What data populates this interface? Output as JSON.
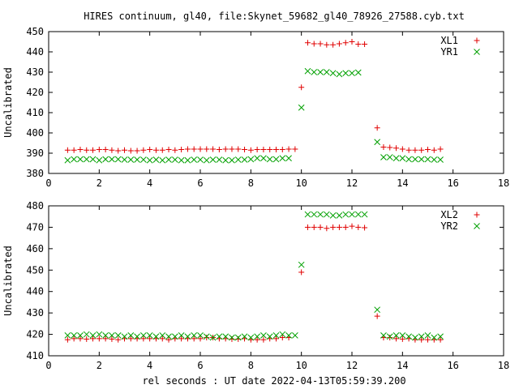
{
  "title": "HIRES continuum, gl40, file:Skynet_59682_gl40_78926_27588.cyb.txt",
  "xlabel": "rel seconds : UT date 2022-04-13T05:59:39.200",
  "colors": {
    "red": "#e00000",
    "green": "#00a000",
    "axis": "#000000"
  },
  "chart_data": [
    {
      "type": "scatter",
      "ylabel": "Uncalibrated",
      "xlim": [
        0,
        18
      ],
      "ylim": [
        380,
        450
      ],
      "xticks": [
        0,
        2,
        4,
        6,
        8,
        10,
        12,
        14,
        16,
        18
      ],
      "yticks": [
        380,
        390,
        400,
        410,
        420,
        430,
        440,
        450
      ],
      "legend_position": "top-right",
      "series": [
        {
          "name": "XL1",
          "marker": "plus",
          "color": "#e00000",
          "points": [
            [
              0.75,
              391.5
            ],
            [
              1.0,
              391.5
            ],
            [
              1.25,
              391.8
            ],
            [
              1.5,
              391.5
            ],
            [
              1.75,
              391.5
            ],
            [
              2.0,
              391.8
            ],
            [
              2.25,
              391.8
            ],
            [
              2.5,
              391.5
            ],
            [
              2.75,
              391.2
            ],
            [
              3.0,
              391.5
            ],
            [
              3.25,
              391.2
            ],
            [
              3.5,
              391.2
            ],
            [
              3.75,
              391.5
            ],
            [
              4.0,
              391.8
            ],
            [
              4.25,
              391.5
            ],
            [
              4.5,
              391.5
            ],
            [
              4.75,
              391.8
            ],
            [
              5.0,
              391.5
            ],
            [
              5.25,
              391.8
            ],
            [
              5.5,
              392.0
            ],
            [
              5.75,
              392.0
            ],
            [
              6.0,
              392.0
            ],
            [
              6.25,
              392.0
            ],
            [
              6.5,
              392.0
            ],
            [
              6.75,
              391.8
            ],
            [
              7.0,
              392.0
            ],
            [
              7.25,
              392.0
            ],
            [
              7.5,
              392.0
            ],
            [
              7.75,
              391.8
            ],
            [
              8.0,
              391.5
            ],
            [
              8.25,
              391.8
            ],
            [
              8.5,
              391.8
            ],
            [
              8.75,
              391.8
            ],
            [
              9.0,
              391.8
            ],
            [
              9.25,
              391.8
            ],
            [
              9.5,
              392.0
            ],
            [
              9.75,
              392.0
            ],
            [
              10.0,
              422.5
            ],
            [
              10.25,
              444.5
            ],
            [
              10.5,
              444.0
            ],
            [
              10.75,
              444.0
            ],
            [
              11.0,
              443.5
            ],
            [
              11.25,
              443.5
            ],
            [
              11.5,
              444.0
            ],
            [
              11.75,
              444.5
            ],
            [
              12.0,
              445.0
            ],
            [
              12.25,
              443.8
            ],
            [
              12.5,
              443.8
            ],
            [
              13.0,
              402.5
            ],
            [
              13.25,
              393.0
            ],
            [
              13.5,
              392.8
            ],
            [
              13.75,
              392.5
            ],
            [
              14.0,
              392.0
            ],
            [
              14.25,
              391.5
            ],
            [
              14.5,
              391.5
            ],
            [
              14.75,
              391.5
            ],
            [
              15.0,
              391.8
            ],
            [
              15.25,
              391.5
            ],
            [
              15.5,
              392.0
            ]
          ]
        },
        {
          "name": "YR1",
          "marker": "cross",
          "color": "#00a000",
          "points": [
            [
              0.75,
              386.5
            ],
            [
              1.0,
              387.0
            ],
            [
              1.25,
              387.0
            ],
            [
              1.5,
              387.0
            ],
            [
              1.75,
              387.0
            ],
            [
              2.0,
              386.5
            ],
            [
              2.25,
              387.0
            ],
            [
              2.5,
              387.0
            ],
            [
              2.75,
              387.0
            ],
            [
              3.0,
              386.8
            ],
            [
              3.25,
              386.8
            ],
            [
              3.5,
              386.8
            ],
            [
              3.75,
              386.8
            ],
            [
              4.0,
              386.5
            ],
            [
              4.25,
              386.8
            ],
            [
              4.5,
              386.5
            ],
            [
              4.75,
              386.8
            ],
            [
              5.0,
              386.8
            ],
            [
              5.25,
              386.5
            ],
            [
              5.5,
              386.5
            ],
            [
              5.75,
              386.8
            ],
            [
              6.0,
              386.8
            ],
            [
              6.25,
              386.5
            ],
            [
              6.5,
              386.8
            ],
            [
              6.75,
              386.8
            ],
            [
              7.0,
              386.5
            ],
            [
              7.25,
              386.5
            ],
            [
              7.5,
              386.8
            ],
            [
              7.75,
              386.8
            ],
            [
              8.0,
              387.0
            ],
            [
              8.25,
              387.5
            ],
            [
              8.5,
              387.5
            ],
            [
              8.75,
              387.0
            ],
            [
              9.0,
              387.0
            ],
            [
              9.25,
              387.5
            ],
            [
              9.5,
              387.5
            ],
            [
              10.0,
              412.5
            ],
            [
              10.25,
              430.5
            ],
            [
              10.5,
              430.0
            ],
            [
              10.75,
              430.0
            ],
            [
              11.0,
              430.0
            ],
            [
              11.25,
              429.5
            ],
            [
              11.5,
              429.0
            ],
            [
              11.75,
              429.5
            ],
            [
              12.0,
              429.5
            ],
            [
              12.25,
              429.8
            ],
            [
              13.0,
              395.5
            ],
            [
              13.25,
              388.0
            ],
            [
              13.5,
              388.0
            ],
            [
              13.75,
              387.5
            ],
            [
              14.0,
              387.5
            ],
            [
              14.25,
              387.0
            ],
            [
              14.5,
              387.0
            ],
            [
              14.75,
              387.0
            ],
            [
              15.0,
              387.0
            ],
            [
              15.25,
              386.8
            ],
            [
              15.5,
              386.8
            ]
          ]
        }
      ]
    },
    {
      "type": "scatter",
      "ylabel": "Uncalibrated",
      "xlim": [
        0,
        18
      ],
      "ylim": [
        410,
        480
      ],
      "xticks": [
        0,
        2,
        4,
        6,
        8,
        10,
        12,
        14,
        16,
        18
      ],
      "yticks": [
        410,
        420,
        430,
        440,
        450,
        460,
        470,
        480
      ],
      "legend_position": "top-right",
      "series": [
        {
          "name": "XL2",
          "marker": "plus",
          "color": "#e00000",
          "points": [
            [
              0.75,
              417.5
            ],
            [
              1.0,
              418.0
            ],
            [
              1.25,
              418.0
            ],
            [
              1.5,
              417.8
            ],
            [
              1.75,
              418.0
            ],
            [
              2.0,
              418.0
            ],
            [
              2.25,
              418.0
            ],
            [
              2.5,
              417.8
            ],
            [
              2.75,
              417.5
            ],
            [
              3.0,
              418.0
            ],
            [
              3.25,
              418.0
            ],
            [
              3.5,
              418.0
            ],
            [
              3.75,
              418.0
            ],
            [
              4.0,
              418.0
            ],
            [
              4.25,
              418.0
            ],
            [
              4.5,
              418.0
            ],
            [
              4.75,
              417.5
            ],
            [
              5.0,
              418.0
            ],
            [
              5.25,
              418.0
            ],
            [
              5.5,
              418.0
            ],
            [
              5.75,
              418.0
            ],
            [
              6.0,
              418.0
            ],
            [
              6.25,
              418.5
            ],
            [
              6.5,
              418.5
            ],
            [
              6.75,
              418.0
            ],
            [
              7.0,
              418.0
            ],
            [
              7.25,
              417.8
            ],
            [
              7.5,
              417.8
            ],
            [
              7.75,
              418.0
            ],
            [
              8.0,
              417.5
            ],
            [
              8.25,
              417.5
            ],
            [
              8.5,
              417.5
            ],
            [
              8.75,
              418.0
            ],
            [
              9.0,
              418.0
            ],
            [
              9.25,
              418.5
            ],
            [
              9.5,
              418.5
            ],
            [
              10.0,
              449.0
            ],
            [
              10.25,
              470.0
            ],
            [
              10.5,
              470.0
            ],
            [
              10.75,
              470.0
            ],
            [
              11.0,
              469.5
            ],
            [
              11.25,
              470.0
            ],
            [
              11.5,
              470.0
            ],
            [
              11.75,
              470.0
            ],
            [
              12.0,
              470.5
            ],
            [
              12.25,
              470.0
            ],
            [
              12.5,
              469.8
            ],
            [
              13.0,
              428.5
            ],
            [
              13.25,
              418.5
            ],
            [
              13.5,
              418.5
            ],
            [
              13.75,
              418.0
            ],
            [
              14.0,
              417.8
            ],
            [
              14.25,
              418.0
            ],
            [
              14.5,
              417.5
            ],
            [
              14.75,
              417.5
            ],
            [
              15.0,
              417.5
            ],
            [
              15.25,
              417.5
            ],
            [
              15.5,
              417.5
            ]
          ]
        },
        {
          "name": "YR2",
          "marker": "cross",
          "color": "#00a000",
          "points": [
            [
              0.75,
              419.5
            ],
            [
              1.0,
              419.5
            ],
            [
              1.25,
              419.5
            ],
            [
              1.5,
              420.0
            ],
            [
              1.75,
              419.5
            ],
            [
              2.0,
              420.0
            ],
            [
              2.25,
              419.5
            ],
            [
              2.5,
              419.5
            ],
            [
              2.75,
              419.5
            ],
            [
              3.0,
              419.0
            ],
            [
              3.25,
              419.5
            ],
            [
              3.5,
              419.0
            ],
            [
              3.75,
              419.5
            ],
            [
              4.0,
              419.5
            ],
            [
              4.25,
              419.0
            ],
            [
              4.5,
              419.5
            ],
            [
              4.75,
              419.0
            ],
            [
              5.0,
              419.0
            ],
            [
              5.25,
              419.5
            ],
            [
              5.5,
              419.0
            ],
            [
              5.75,
              419.5
            ],
            [
              6.0,
              419.5
            ],
            [
              6.25,
              419.0
            ],
            [
              6.5,
              418.5
            ],
            [
              6.75,
              419.0
            ],
            [
              7.0,
              419.0
            ],
            [
              7.25,
              418.5
            ],
            [
              7.5,
              418.5
            ],
            [
              7.75,
              419.0
            ],
            [
              8.0,
              418.5
            ],
            [
              8.25,
              419.0
            ],
            [
              8.5,
              419.5
            ],
            [
              8.75,
              419.0
            ],
            [
              9.0,
              419.5
            ],
            [
              9.25,
              420.0
            ],
            [
              9.5,
              419.5
            ],
            [
              9.75,
              419.5
            ],
            [
              10.0,
              452.5
            ],
            [
              10.25,
              476.0
            ],
            [
              10.5,
              476.0
            ],
            [
              10.75,
              476.0
            ],
            [
              11.0,
              476.0
            ],
            [
              11.25,
              475.5
            ],
            [
              11.5,
              475.5
            ],
            [
              11.75,
              476.0
            ],
            [
              12.0,
              476.0
            ],
            [
              12.25,
              476.0
            ],
            [
              12.5,
              476.0
            ],
            [
              13.0,
              431.5
            ],
            [
              13.25,
              419.5
            ],
            [
              13.5,
              419.0
            ],
            [
              13.75,
              419.5
            ],
            [
              14.0,
              419.5
            ],
            [
              14.25,
              419.0
            ],
            [
              14.5,
              418.5
            ],
            [
              14.75,
              419.0
            ],
            [
              15.0,
              419.5
            ],
            [
              15.25,
              418.5
            ],
            [
              15.5,
              419.0
            ]
          ]
        }
      ]
    }
  ]
}
